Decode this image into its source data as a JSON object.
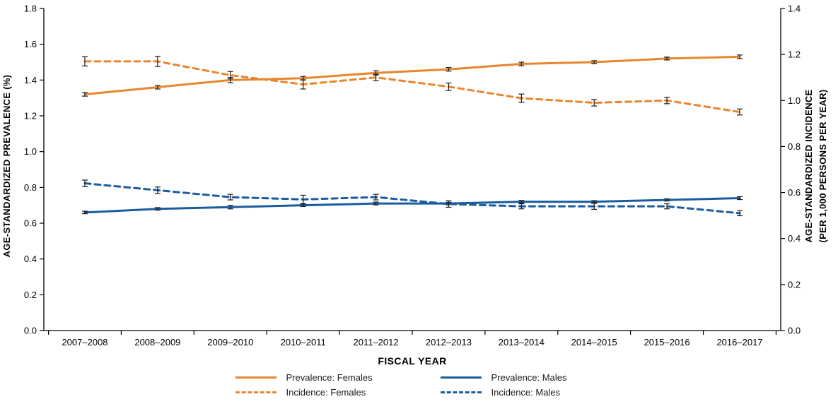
{
  "chart_data": {
    "type": "line",
    "title": "",
    "categories": [
      "2007–2008",
      "2008–2009",
      "2009–2010",
      "2010–2011",
      "2011–2012",
      "2012–2013",
      "2013–2014",
      "2014–2015",
      "2015–2016",
      "2016–2017"
    ],
    "xlabel": "FISCAL YEAR",
    "left_axis": {
      "label": "AGE-STANDARDIZED PREVALENCE (%)",
      "min": 0.0,
      "max": 1.8,
      "step": 0.2
    },
    "right_axis": {
      "label_lines": [
        "AGE-STANDARDIZED INCIDENCE",
        "(PER 1,000 PERSONS PER YEAR)"
      ],
      "min": 0.0,
      "max": 1.4,
      "step": 0.2
    },
    "grid": false,
    "legend_position": "bottom",
    "colors": {
      "orange": "#E8862D",
      "blue": "#1A5C9E",
      "error_bar": "#1a1a1a"
    },
    "series": [
      {
        "name": "Prevalence: Females",
        "axis": "left",
        "style": "solid",
        "color": "#E8862D",
        "values": [
          1.32,
          1.36,
          1.4,
          1.41,
          1.44,
          1.46,
          1.49,
          1.5,
          1.52,
          1.53
        ],
        "errors": [
          0.01,
          0.01,
          0.015,
          0.01,
          0.012,
          0.01,
          0.01,
          0.008,
          0.008,
          0.01
        ]
      },
      {
        "name": "Incidence: Females",
        "axis": "right",
        "style": "dashed",
        "color": "#E8862D",
        "values": [
          1.17,
          1.17,
          1.11,
          1.07,
          1.1,
          1.06,
          1.01,
          0.99,
          1.0,
          0.95
        ],
        "errors": [
          0.02,
          0.022,
          0.016,
          0.02,
          0.014,
          0.016,
          0.018,
          0.014,
          0.014,
          0.013
        ]
      },
      {
        "name": "Prevalence: Males",
        "axis": "left",
        "style": "solid",
        "color": "#1A5C9E",
        "values": [
          0.66,
          0.68,
          0.69,
          0.7,
          0.71,
          0.71,
          0.72,
          0.72,
          0.73,
          0.74
        ],
        "errors": [
          0.007,
          0.007,
          0.01,
          0.007,
          0.008,
          0.007,
          0.007,
          0.006,
          0.006,
          0.008
        ]
      },
      {
        "name": "Incidence: Males",
        "axis": "right",
        "style": "dashed",
        "color": "#1A5C9E",
        "values": [
          0.64,
          0.61,
          0.58,
          0.57,
          0.58,
          0.55,
          0.54,
          0.54,
          0.54,
          0.51
        ],
        "errors": [
          0.014,
          0.014,
          0.012,
          0.018,
          0.012,
          0.014,
          0.011,
          0.013,
          0.011,
          0.011
        ]
      }
    ]
  }
}
